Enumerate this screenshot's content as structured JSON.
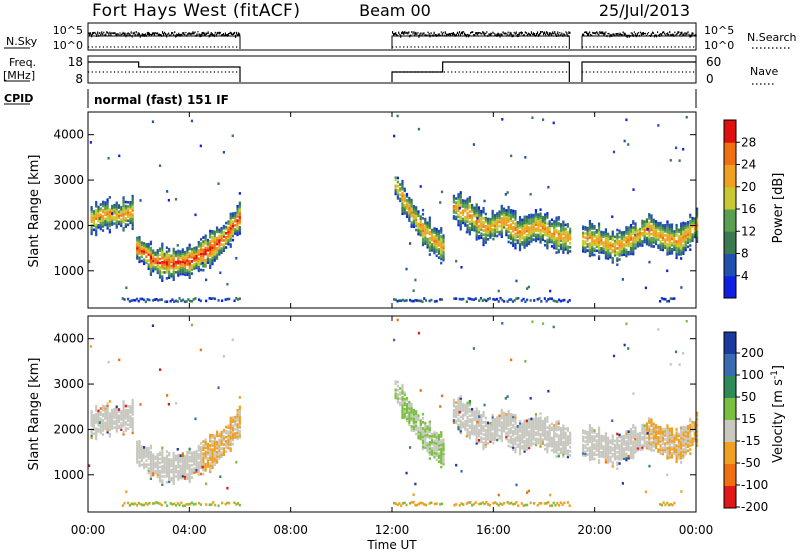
{
  "header": {
    "station": "Fort Hays West (fitACF)",
    "beam": "Beam 00",
    "date": "25/Jul/2013"
  },
  "sky_panel": {
    "left_label": "N.Sky",
    "left_ticks": [
      "10^5",
      "10^0"
    ],
    "right_ticks": [
      "10^5",
      "10^0"
    ],
    "right_label": "N.Search",
    "legend_line": "dotted"
  },
  "freq_panel": {
    "left_label_line1": "Freq.",
    "left_label_line2": "[MHz]",
    "left_ticks": [
      "18",
      "8"
    ],
    "right_ticks": [
      "60",
      "0"
    ],
    "right_label": "Nave",
    "legend_line": "dotted"
  },
  "cpid": {
    "label": "CPID",
    "mode_text": "normal (fast) 151 IF"
  },
  "x_axis": {
    "ticks": [
      "00:00",
      "04:00",
      "08:00",
      "12:00",
      "16:00",
      "20:00",
      "00:00"
    ],
    "label": "Time UT",
    "range_hours": [
      0,
      24
    ]
  },
  "chart_data": [
    {
      "type": "heatmap",
      "quantity": "Power",
      "ylabel": "Slant Range [km]",
      "ylim": [
        180,
        4500
      ],
      "yticks": [
        "1000",
        "2000",
        "3000",
        "4000"
      ],
      "ytick_values": [
        1000,
        2000,
        3000,
        4000
      ],
      "colorbar": {
        "label": "Power [dB]",
        "ticks": [
          "4",
          "8",
          "12",
          "16",
          "20",
          "24",
          "28"
        ],
        "colors": [
          "#1020e0",
          "#2050b0",
          "#3a7a50",
          "#58a050",
          "#c8c830",
          "#f0a020",
          "#f07010",
          "#e01010"
        ]
      },
      "gaps_hours": [
        [
          6.0,
          12.0
        ],
        [
          14.0,
          14.4
        ],
        [
          19.0,
          19.5
        ]
      ],
      "echo_bands": [
        {
          "t_start": 0.1,
          "t_end": 1.8,
          "range_km": [
            2100,
            2250,
            2200,
            2300
          ]
        },
        {
          "t_start": 1.9,
          "t_end": 6.0,
          "range_km": [
            1500,
            1200,
            1150,
            1200,
            1400,
            1700,
            2200
          ]
        },
        {
          "t_start": 12.1,
          "t_end": 14.0,
          "range_km": [
            2900,
            2400,
            2000,
            1700,
            1500
          ]
        },
        {
          "t_start": 14.4,
          "t_end": 19.0,
          "range_km": [
            2400,
            2200,
            1900,
            2100,
            1800,
            2000,
            1800,
            1700
          ]
        },
        {
          "t_start": 19.5,
          "t_end": 24.0,
          "range_km": [
            1700,
            1650,
            1500,
            1700,
            1900,
            1700,
            1650,
            2000
          ]
        }
      ],
      "ground_scatter_km": 300
    },
    {
      "type": "heatmap",
      "quantity": "Velocity",
      "ylabel": "Slant Range [km]",
      "ylim": [
        180,
        4500
      ],
      "yticks": [
        "1000",
        "2000",
        "3000",
        "4000"
      ],
      "ytick_values": [
        1000,
        2000,
        3000,
        4000
      ],
      "colorbar": {
        "label": "Velocity [m s^-1]",
        "ticks": [
          "200",
          "100",
          "50",
          "15",
          "-15",
          "-50",
          "-100",
          "-200"
        ],
        "colors": [
          "#1a3aa0",
          "#3a6ab0",
          "#2f8a5a",
          "#7ac040",
          "#c8c8c0",
          "#f0a020",
          "#f07010",
          "#e01818"
        ]
      }
    }
  ]
}
